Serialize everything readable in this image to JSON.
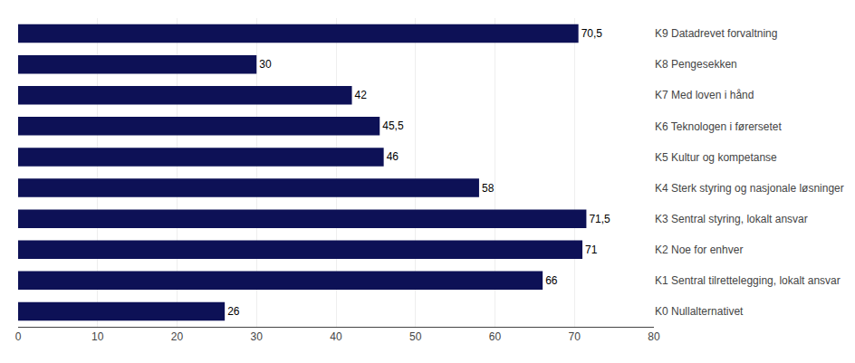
{
  "chart_data": {
    "type": "bar",
    "orientation": "horizontal",
    "categories": [
      "K9 Datadrevet forvaltning",
      "K8 Pengesekken",
      "K7 Med loven i hånd",
      "K6 Teknologen i førersetet",
      "K5 Kultur og kompetanse",
      "K4 Sterk styring og nasjonale løsninger",
      "K3 Sentral styring, lokalt ansvar",
      "K2 Noe for enhver",
      "K1 Sentral tilrettelegging, lokalt ansvar",
      "K0 Nullalternativet"
    ],
    "values": [
      70.5,
      30,
      42,
      45.5,
      46,
      58,
      71.5,
      71,
      66,
      26
    ],
    "value_labels": [
      "70,5",
      "30",
      "42",
      "45,5",
      "46",
      "58",
      "71,5",
      "71",
      "66",
      "26"
    ],
    "data_labels": true,
    "color": "#0d1156",
    "xlim": [
      0,
      80
    ],
    "xticks": [
      0,
      10,
      20,
      30,
      40,
      50,
      60,
      70,
      80
    ],
    "grid": true
  }
}
